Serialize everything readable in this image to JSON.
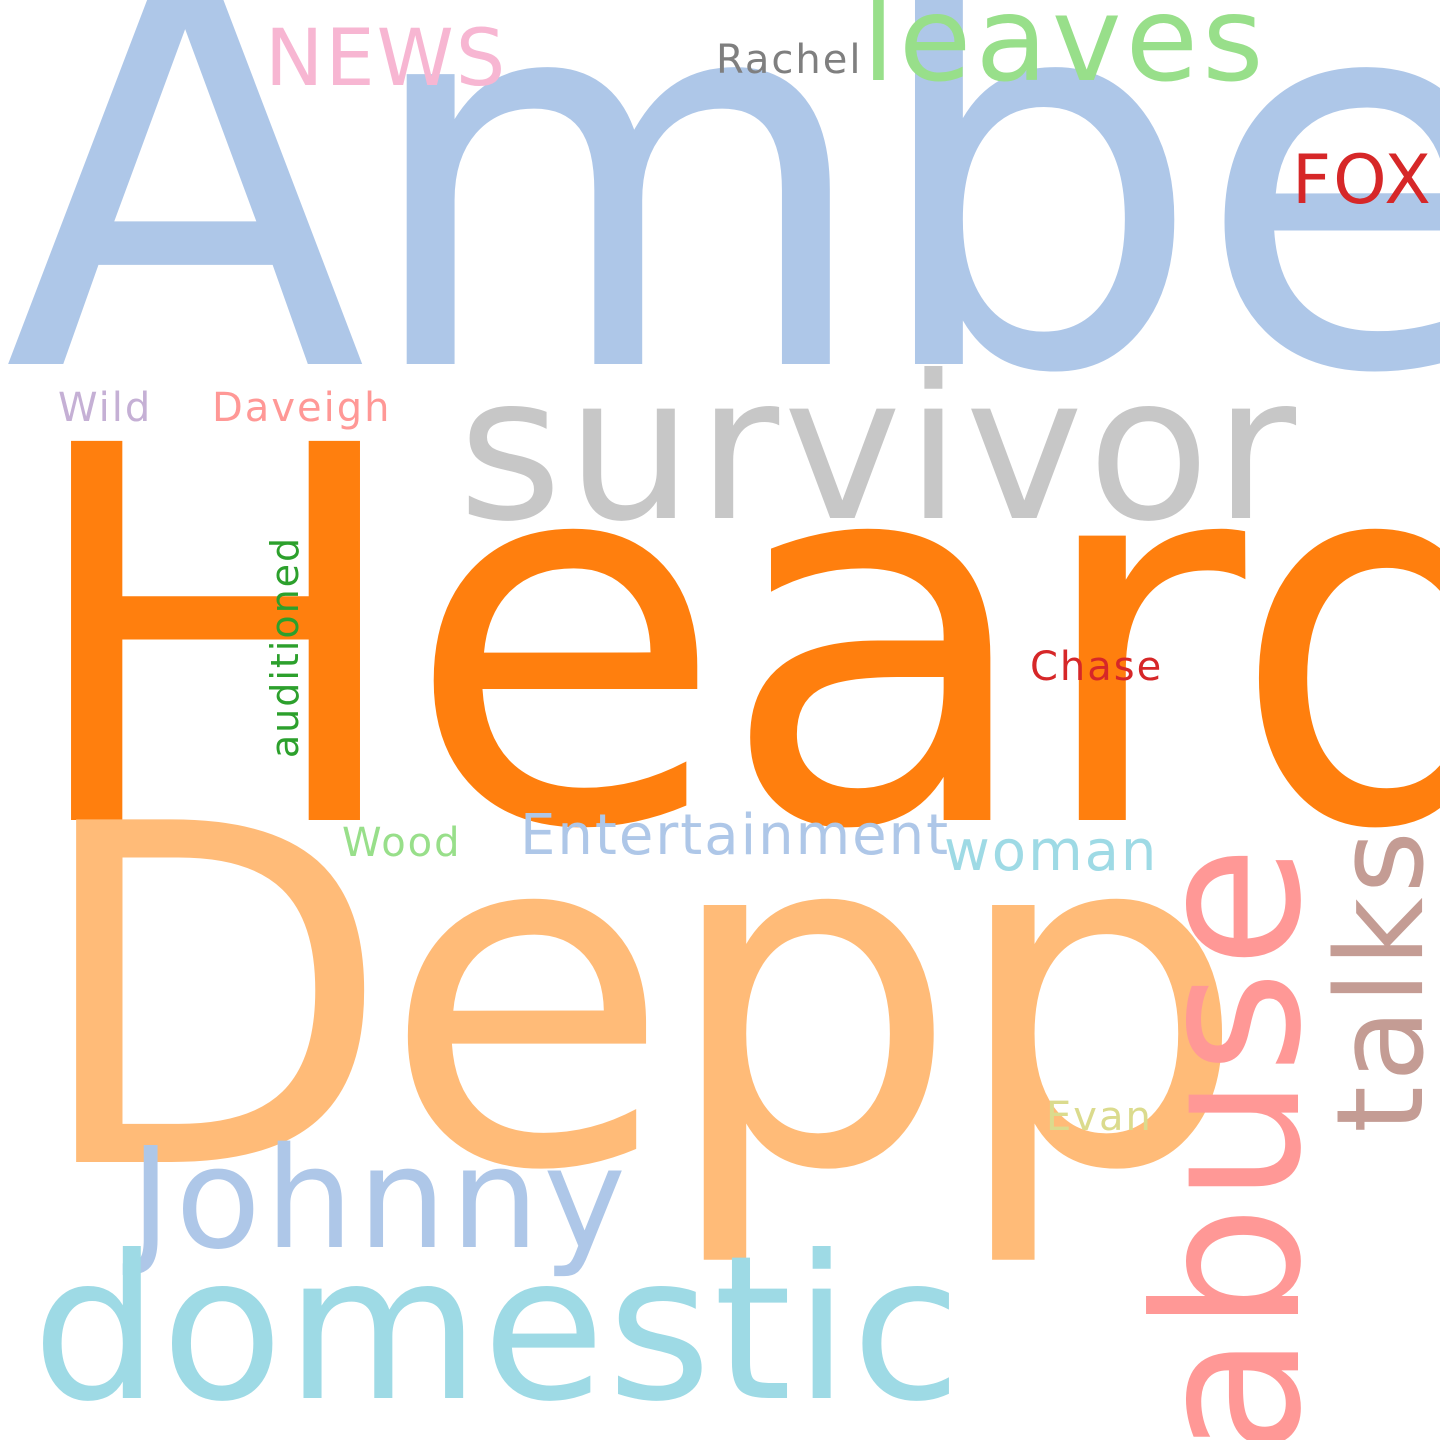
{
  "words": {
    "amber": {
      "text": "Amber",
      "color": "#aec7e8"
    },
    "heard": {
      "text": "Heard",
      "color": "#ff7f0e"
    },
    "depp": {
      "text": "Depp",
      "color": "#ffbb78"
    },
    "survivor": {
      "text": "survivor",
      "color": "#c7c7c7"
    },
    "domestic": {
      "text": "domestic",
      "color": "#9edae5"
    },
    "johnny": {
      "text": "Johnny",
      "color": "#aec7e8"
    },
    "abuse": {
      "text": "abuse",
      "color": "#ff9896"
    },
    "talks": {
      "text": "talks",
      "color": "#c49c94"
    },
    "leaves": {
      "text": "leaves",
      "color": "#98df8a"
    },
    "news": {
      "text": "NEWS",
      "color": "#f7b6d2"
    },
    "fox": {
      "text": "FOX",
      "color": "#d62728"
    },
    "rachel": {
      "text": "Rachel",
      "color": "#7f7f7f"
    },
    "wild": {
      "text": "Wild",
      "color": "#c5b0d5"
    },
    "daveigh": {
      "text": "Daveigh",
      "color": "#ff9896"
    },
    "auditioned": {
      "text": "auditioned",
      "color": "#2ca02c"
    },
    "chase": {
      "text": "Chase",
      "color": "#d62728"
    },
    "wood": {
      "text": "Wood",
      "color": "#98df8a"
    },
    "entertainment": {
      "text": "Entertainment",
      "color": "#aec7e8"
    },
    "woman": {
      "text": "woman",
      "color": "#9edae5"
    },
    "evan": {
      "text": "Evan",
      "color": "#dbdb8d"
    }
  }
}
